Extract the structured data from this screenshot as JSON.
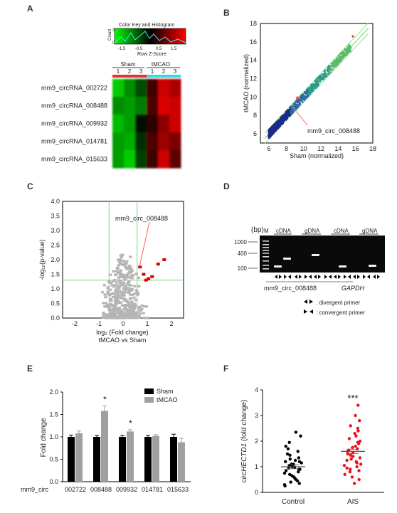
{
  "panels": {
    "A": {
      "label": "A"
    },
    "B": {
      "label": "B"
    },
    "C": {
      "label": "C"
    },
    "D": {
      "label": "D"
    },
    "E": {
      "label": "E"
    },
    "F": {
      "label": "F"
    }
  },
  "heatmap": {
    "color_key_title": "Color Key and Histogram",
    "count_label": "Count",
    "count_ticks": [
      "0",
      "3"
    ],
    "scale_ticks": [
      "-1.5",
      "-0.5",
      "0.5",
      "1.5"
    ],
    "scale_label": "Row Z-Score",
    "groups": [
      "Sham",
      "tMCAO"
    ],
    "columns": [
      "1",
      "2",
      "3",
      "1",
      "2",
      "3"
    ],
    "group_colors": {
      "Sham": "#e83030",
      "tMCAO": "#38d8e8"
    },
    "rows": [
      "mm9_circRNA_002722",
      "mm9_circRNA_008488",
      "mm9_circRNA_009932",
      "mm9_circRNA_014781",
      "mm9_circRNA_015633"
    ],
    "values": [
      [
        -1.3,
        -0.9,
        -0.5,
        0.4,
        1.3,
        1.1
      ],
      [
        -0.9,
        -1.0,
        -0.8,
        0.5,
        1.4,
        1.3
      ],
      [
        -1.2,
        -1.0,
        -0.1,
        0.3,
        0.9,
        1.3
      ],
      [
        -1.0,
        -1.1,
        -0.3,
        0.5,
        1.0,
        0.8
      ],
      [
        -1.0,
        -1.3,
        -0.4,
        0.4,
        1.3,
        0.6
      ]
    ]
  },
  "scatter_b": {
    "xlabel": "Sham (normalized)",
    "ylabel": "tMCAO (normalized)",
    "ticks": [
      "6",
      "8",
      "10",
      "12",
      "14",
      "16",
      "18"
    ],
    "annotation": "mm9_circ_008488"
  },
  "volcano": {
    "xlabel": "log₂ (Fold change)",
    "xlabel2": "tMCAO vs Sham",
    "ylabel": "-log₁₀(p-value)",
    "xticks": [
      "-2",
      "-1",
      "0",
      "1",
      "2"
    ],
    "yticks": [
      "0.0",
      "0.5",
      "1.0",
      "1.5",
      "2.0",
      "2.5",
      "3.0",
      "3.5",
      "4.0"
    ],
    "annotation": "mm9_circ_008488"
  },
  "gel": {
    "bp_label": "(bp)",
    "marker_label": "M",
    "ladder": [
      "1000",
      "400",
      "100"
    ],
    "lane_groups": [
      "cDNA",
      "gDNA",
      "cDNA",
      "gDNA"
    ],
    "gene1": "mm9_circ_008488",
    "gene2": "GAPDH",
    "legend_divergent": ": divergent primer",
    "legend_convergent": ": convergent primer"
  },
  "colors": {
    "sham": "#000000",
    "tmcao": "#a0a0a0",
    "sig_red": "#e00000",
    "gray_pt": "#b0b0b0"
  },
  "chart_data": [
    {
      "type": "heatmap",
      "title": "",
      "rows": [
        "mm9_circRNA_002722",
        "mm9_circRNA_008488",
        "mm9_circRNA_009932",
        "mm9_circRNA_014781",
        "mm9_circRNA_015633"
      ],
      "columns": [
        "Sham 1",
        "Sham 2",
        "Sham 3",
        "tMCAO 1",
        "tMCAO 2",
        "tMCAO 3"
      ],
      "scale": "Row Z-Score"
    },
    {
      "type": "scatter",
      "xlabel": "Sham (normalized)",
      "ylabel": "tMCAO (normalized)",
      "xlim": [
        5,
        18
      ],
      "ylim": [
        5,
        18
      ],
      "highlight": {
        "label": "mm9_circ_008488",
        "x": 9.3,
        "y": 9.9
      }
    },
    {
      "type": "scatter",
      "xlabel": "log₂ (Fold change) tMCAO vs Sham",
      "ylabel": "-log₁₀(p-value)",
      "xlim": [
        -2.5,
        2.5
      ],
      "ylim": [
        0,
        4
      ],
      "thresholds": {
        "x": [
          -0.58,
          0.58
        ],
        "y": 1.3
      },
      "significant": [
        {
          "x": 0.7,
          "y": 1.75
        },
        {
          "x": 0.85,
          "y": 1.5
        },
        {
          "x": 1.05,
          "y": 1.35
        },
        {
          "x": 1.2,
          "y": 1.42
        },
        {
          "x": 1.45,
          "y": 1.85
        },
        {
          "x": 1.7,
          "y": 2.0
        },
        {
          "x": 0.95,
          "y": 1.3
        }
      ],
      "highlight_label": "mm9_circ_008488"
    },
    {
      "type": "bar",
      "ylabel": "Fold change",
      "ylim": [
        0,
        2.0
      ],
      "yticks": [
        "0.0",
        "0.5",
        "1.0",
        "1.5",
        "2.0"
      ],
      "x_prefix": "mm9_circ",
      "categories": [
        "002722",
        "008488",
        "009932",
        "014781",
        "015633"
      ],
      "series": [
        {
          "name": "Sham",
          "values": [
            1.0,
            1.0,
            1.0,
            1.0,
            1.0
          ],
          "errors": [
            0.04,
            0.03,
            0.03,
            0.03,
            0.06
          ]
        },
        {
          "name": "tMCAO",
          "values": [
            1.08,
            1.58,
            1.12,
            1.02,
            0.88
          ],
          "errors": [
            0.05,
            0.11,
            0.04,
            0.03,
            0.09
          ]
        }
      ],
      "significance": [
        "",
        "*",
        "*",
        "",
        ""
      ]
    },
    {
      "type": "scatter",
      "ylabel": "circHECTD1 (fold change)",
      "ylim": [
        0,
        4
      ],
      "yticks": [
        "0",
        "1",
        "2",
        "3",
        "4"
      ],
      "categories": [
        "Control",
        "AIS"
      ],
      "means": [
        1.0,
        1.6
      ],
      "significance": "***",
      "groups": [
        {
          "name": "Control",
          "values": [
            2.35,
            2.2,
            1.95,
            1.8,
            1.7,
            1.6,
            1.5,
            1.45,
            1.35,
            1.3,
            1.25,
            1.2,
            1.15,
            1.1,
            1.05,
            1.0,
            1.0,
            0.98,
            0.95,
            0.9,
            0.85,
            0.8,
            0.75,
            0.7,
            0.65,
            0.6,
            0.55,
            0.5,
            0.45,
            0.4,
            0.35,
            0.3,
            0.25,
            1.1,
            0.9,
            1.2
          ]
        },
        {
          "name": "AIS",
          "values": [
            3.4,
            3.0,
            2.8,
            2.6,
            2.5,
            2.4,
            2.3,
            2.2,
            2.1,
            2.0,
            1.95,
            1.9,
            1.8,
            1.75,
            1.7,
            1.65,
            1.6,
            1.55,
            1.5,
            1.45,
            1.4,
            1.35,
            1.3,
            1.25,
            1.2,
            1.15,
            1.1,
            1.05,
            1.0,
            0.95,
            0.9,
            0.85,
            0.8,
            0.7,
            0.6,
            0.5,
            0.35
          ]
        }
      ]
    }
  ]
}
